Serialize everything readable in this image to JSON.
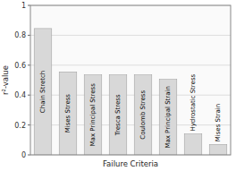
{
  "chart_data": {
    "type": "bar",
    "categories": [
      "Chain Stretch",
      "Mises Stress",
      "Max Principal Stress",
      "Tresca Stress",
      "Coulomb Stress",
      "Max Principal Strain",
      "Hydrostatic Stress",
      "Mises Strain"
    ],
    "values": [
      0.845,
      0.555,
      0.535,
      0.535,
      0.535,
      0.505,
      0.14,
      0.07
    ],
    "color": "#d8d8d8",
    "xlabel": "Failure Criteria",
    "ylabel": "r²-value",
    "ylim": [
      0,
      1.0
    ],
    "yticks": [
      0,
      0.2,
      0.4,
      0.6,
      0.8,
      1
    ],
    "grid": true
  }
}
